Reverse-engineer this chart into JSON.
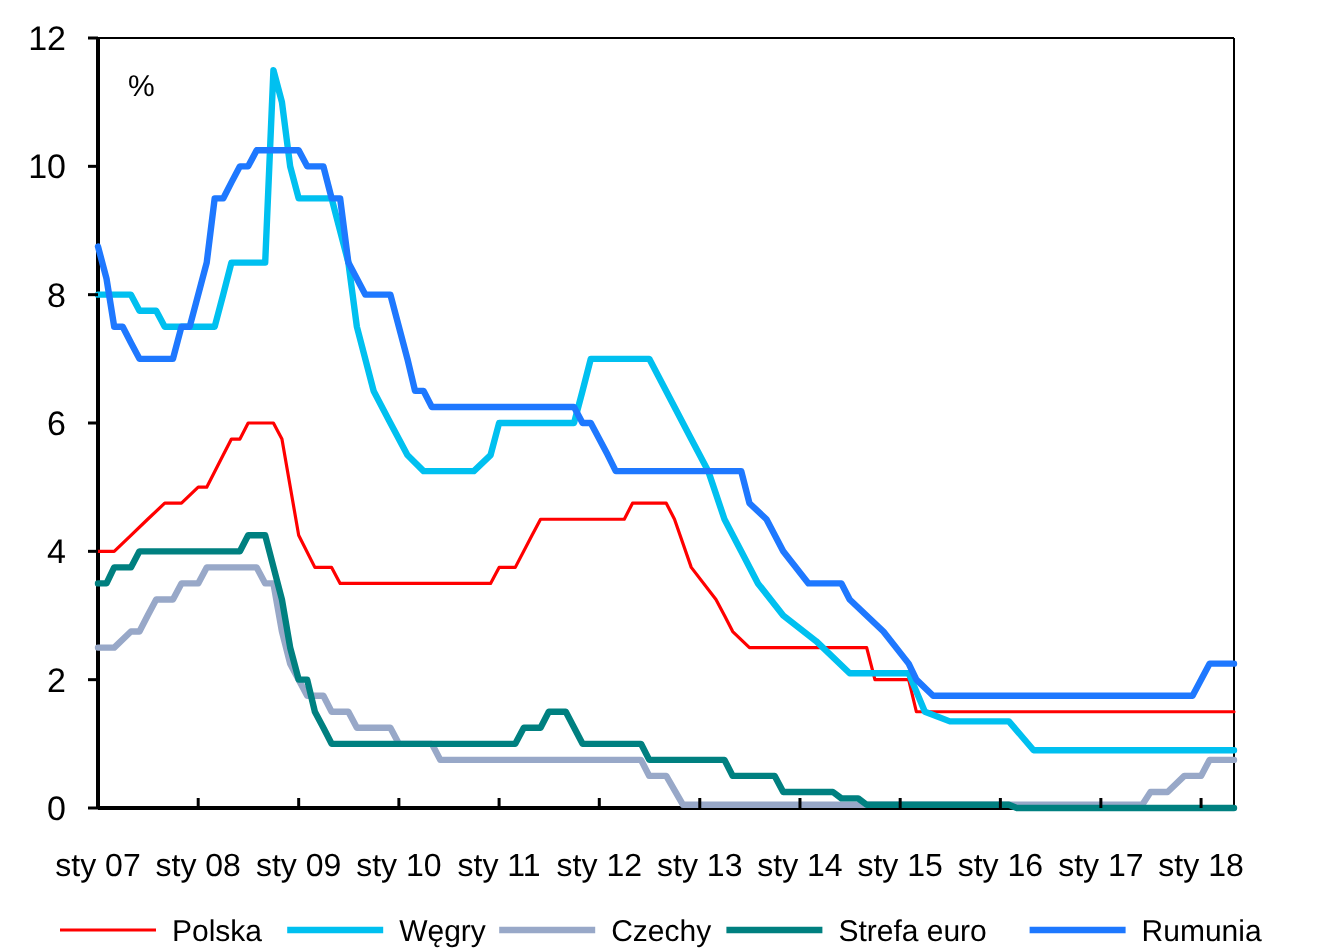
{
  "chart_data": {
    "type": "line",
    "ylabel": "%",
    "xlim": [
      "2007-01",
      "2018-05"
    ],
    "xticks": [
      {
        "value": "2007-01",
        "label": "sty 07"
      },
      {
        "value": "2008-01",
        "label": "sty 08"
      },
      {
        "value": "2009-01",
        "label": "sty 09"
      },
      {
        "value": "2010-01",
        "label": "sty 10"
      },
      {
        "value": "2011-01",
        "label": "sty 11"
      },
      {
        "value": "2012-01",
        "label": "sty 12"
      },
      {
        "value": "2013-01",
        "label": "sty 13"
      },
      {
        "value": "2014-01",
        "label": "sty 14"
      },
      {
        "value": "2015-01",
        "label": "sty 15"
      },
      {
        "value": "2016-01",
        "label": "sty 16"
      },
      {
        "value": "2017-01",
        "label": "sty 17"
      },
      {
        "value": "2018-01",
        "label": "sty 18"
      }
    ],
    "ylim": [
      0,
      12
    ],
    "yticks": [
      0,
      2,
      4,
      6,
      8,
      10,
      12
    ],
    "grid": false,
    "legend": "bottom",
    "marker": "none",
    "line_style": "solid",
    "series": [
      {
        "name": "Polska",
        "color": "#ff0000",
        "x": [
          "2007-01",
          "2007-03",
          "2007-05",
          "2007-07",
          "2007-09",
          "2007-11",
          "2008-01",
          "2008-02",
          "2008-04",
          "2008-05",
          "2008-06",
          "2008-07",
          "2008-10",
          "2008-11",
          "2009-01",
          "2009-03",
          "2009-05",
          "2009-06",
          "2010-12",
          "2011-01",
          "2011-03",
          "2011-05",
          "2011-06",
          "2012-04",
          "2012-05",
          "2012-09",
          "2012-10",
          "2012-12",
          "2013-03",
          "2013-04",
          "2013-05",
          "2013-07",
          "2014-09",
          "2014-10",
          "2015-02",
          "2015-03",
          "2018-05"
        ],
        "values": [
          4.0,
          4.0,
          4.25,
          4.5,
          4.75,
          4.75,
          5.0,
          5.0,
          5.5,
          5.75,
          5.75,
          6.0,
          6.0,
          5.75,
          4.25,
          3.75,
          3.75,
          3.5,
          3.5,
          3.75,
          3.75,
          4.25,
          4.5,
          4.5,
          4.75,
          4.75,
          4.5,
          3.75,
          3.25,
          3.0,
          2.75,
          2.5,
          2.5,
          2.0,
          2.0,
          1.5,
          1.5
        ]
      },
      {
        "name": "Węgry",
        "color": "#00c0f0",
        "x": [
          "2007-01",
          "2007-05",
          "2007-06",
          "2007-08",
          "2007-09",
          "2008-03",
          "2008-04",
          "2008-05",
          "2008-09",
          "2008-10",
          "2008-11",
          "2008-12",
          "2009-01",
          "2009-05",
          "2009-07",
          "2009-08",
          "2009-10",
          "2009-12",
          "2010-02",
          "2010-04",
          "2010-10",
          "2010-12",
          "2011-01",
          "2011-10",
          "2011-11",
          "2011-12",
          "2012-07",
          "2012-08",
          "2012-10",
          "2012-12",
          "2013-02",
          "2013-04",
          "2013-06",
          "2013-08",
          "2013-11",
          "2014-03",
          "2014-07",
          "2015-02",
          "2015-04",
          "2015-07",
          "2016-02",
          "2016-05",
          "2018-05"
        ],
        "values": [
          8.0,
          8.0,
          7.75,
          7.75,
          7.5,
          7.5,
          8.0,
          8.5,
          8.5,
          11.5,
          11.0,
          10.0,
          9.5,
          9.5,
          8.5,
          7.5,
          6.5,
          6.0,
          5.5,
          5.25,
          5.25,
          5.5,
          6.0,
          6.0,
          6.5,
          7.0,
          7.0,
          6.75,
          6.25,
          5.75,
          5.25,
          4.5,
          4.0,
          3.5,
          3.0,
          2.6,
          2.1,
          2.1,
          1.5,
          1.35,
          1.35,
          0.9,
          0.9
        ]
      },
      {
        "name": "Czechy",
        "color": "#98a8c8",
        "x": [
          "2007-01",
          "2007-03",
          "2007-05",
          "2007-06",
          "2007-07",
          "2007-08",
          "2007-10",
          "2007-11",
          "2008-01",
          "2008-02",
          "2008-08",
          "2008-09",
          "2008-10",
          "2008-11",
          "2008-12",
          "2009-02",
          "2009-04",
          "2009-05",
          "2009-07",
          "2009-08",
          "2009-12",
          "2010-01",
          "2010-05",
          "2010-06",
          "2012-06",
          "2012-07",
          "2012-09",
          "2012-11",
          "2017-06",
          "2017-07",
          "2017-09",
          "2017-11",
          "2018-01",
          "2018-02",
          "2018-05"
        ],
        "values": [
          2.5,
          2.5,
          2.75,
          2.75,
          3.0,
          3.25,
          3.25,
          3.5,
          3.5,
          3.75,
          3.75,
          3.5,
          3.5,
          2.75,
          2.25,
          1.75,
          1.75,
          1.5,
          1.5,
          1.25,
          1.25,
          1.0,
          1.0,
          0.75,
          0.75,
          0.5,
          0.5,
          0.05,
          0.05,
          0.25,
          0.25,
          0.5,
          0.5,
          0.75,
          0.75
        ]
      },
      {
        "name": "Strefa euro",
        "color": "#008080",
        "x": [
          "2007-01",
          "2007-02",
          "2007-03",
          "2007-05",
          "2007-06",
          "2008-06",
          "2008-07",
          "2008-09",
          "2008-11",
          "2008-12",
          "2009-01",
          "2009-02",
          "2009-03",
          "2009-04",
          "2009-05",
          "2011-03",
          "2011-04",
          "2011-06",
          "2011-07",
          "2011-09",
          "2011-11",
          "2012-06",
          "2012-07",
          "2013-04",
          "2013-05",
          "2013-10",
          "2013-11",
          "2014-05",
          "2014-06",
          "2014-08",
          "2014-09",
          "2016-02",
          "2016-03",
          "2018-05"
        ],
        "values": [
          3.5,
          3.5,
          3.75,
          3.75,
          4.0,
          4.0,
          4.25,
          4.25,
          3.25,
          2.5,
          2.0,
          2.0,
          1.5,
          1.25,
          1.0,
          1.0,
          1.25,
          1.25,
          1.5,
          1.5,
          1.0,
          1.0,
          0.75,
          0.75,
          0.5,
          0.5,
          0.25,
          0.25,
          0.15,
          0.15,
          0.05,
          0.05,
          0.0,
          0.0
        ]
      },
      {
        "name": "Rumunia",
        "color": "#1e78ff",
        "x": [
          "2007-01",
          "2007-02",
          "2007-03",
          "2007-04",
          "2007-05",
          "2007-06",
          "2007-10",
          "2007-11",
          "2007-12",
          "2008-02",
          "2008-03",
          "2008-04",
          "2008-05",
          "2008-06",
          "2008-07",
          "2008-08",
          "2009-01",
          "2009-02",
          "2009-04",
          "2009-05",
          "2009-06",
          "2009-07",
          "2009-09",
          "2009-12",
          "2010-02",
          "2010-03",
          "2010-04",
          "2010-05",
          "2011-10",
          "2011-11",
          "2011-12",
          "2012-02",
          "2012-03",
          "2013-06",
          "2013-07",
          "2013-09",
          "2013-11",
          "2014-02",
          "2014-06",
          "2014-07",
          "2014-11",
          "2015-02",
          "2015-03",
          "2015-05",
          "2017-12",
          "2018-01",
          "2018-02",
          "2018-05"
        ],
        "values": [
          8.75,
          8.25,
          7.5,
          7.5,
          7.25,
          7.0,
          7.0,
          7.5,
          7.5,
          8.5,
          9.5,
          9.5,
          9.75,
          10.0,
          10.0,
          10.25,
          10.25,
          10.0,
          10.0,
          9.5,
          9.5,
          8.5,
          8.0,
          8.0,
          7.0,
          6.5,
          6.5,
          6.25,
          6.25,
          6.0,
          6.0,
          5.5,
          5.25,
          5.25,
          4.75,
          4.5,
          4.0,
          3.5,
          3.5,
          3.25,
          2.75,
          2.25,
          2.0,
          1.75,
          1.75,
          2.0,
          2.25,
          2.25
        ]
      }
    ]
  }
}
